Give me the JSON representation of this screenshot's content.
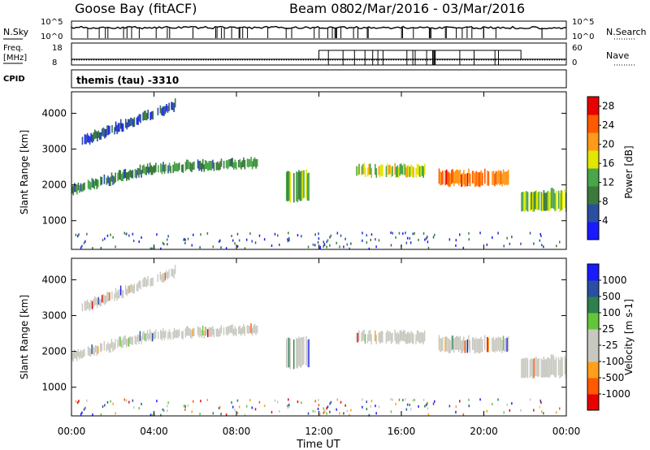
{
  "header": {
    "station": "Goose Bay (fitACF)",
    "beam": "Beam 08",
    "date_range": "02/Mar/2016 - 03/Mar/2016"
  },
  "status_panels": {
    "nsky_label": "N.Sky",
    "nsky_ticks": [
      "10^5",
      "10^0"
    ],
    "nsearch_label": "N.Search",
    "nsearch_ticks": [
      "10^5",
      "10^0"
    ],
    "freq_label_1": "Freq.",
    "freq_label_2": "[MHz]",
    "freq_ticks": [
      "18",
      "8"
    ],
    "nave_label": "Nave",
    "nave_ticks": [
      "60",
      "0"
    ],
    "cpid_label": "CPID",
    "cpid_text": "themis (tau) -3310"
  },
  "colors": {
    "power_scale": [
      "#1a1aff",
      "#2a4fa0",
      "#3c7a3c",
      "#4aa64a",
      "#e3e600",
      "#ff9a1a",
      "#ff5a00",
      "#e80000"
    ],
    "velocity_scale": [
      "#e80000",
      "#ff5a00",
      "#ff9f1a",
      "#c8c8c0",
      "#c8c8c0",
      "#63c63a",
      "#2f7f4f",
      "#2a4fa0",
      "#1a1aff"
    ],
    "ground_scatter": "#c8c8c0"
  },
  "chart_data": [
    {
      "type": "heatmap",
      "name": "power",
      "ylabel": "Slant Range [km]",
      "yticks": [
        "1000",
        "2000",
        "3000",
        "4000"
      ],
      "ylim": [
        200,
        4600
      ],
      "xlim": [
        0,
        24
      ],
      "colorbar": {
        "label": "Power [dB]",
        "ticks": [
          "4",
          "8",
          "12",
          "16",
          "20",
          "24",
          "28"
        ],
        "range": [
          0,
          30
        ]
      },
      "echo_bands": [
        {
          "x": [
            0.0,
            4.0
          ],
          "range_start": [
            1750,
            2350
          ],
          "range_end": [
            1950,
            2550
          ],
          "power": 10
        },
        {
          "x": [
            4.0,
            9.0
          ],
          "range_start": [
            2350,
            2500
          ],
          "range_end": [
            2550,
            2700
          ],
          "power": 11
        },
        {
          "x": [
            10.4,
            11.6
          ],
          "range_start": [
            1550,
            1600
          ],
          "range_end": [
            2350,
            2350
          ],
          "power": 12
        },
        {
          "x": [
            13.8,
            17.2
          ],
          "range_start": [
            2250,
            2250
          ],
          "range_end": [
            2500,
            2500
          ],
          "power": 17
        },
        {
          "x": [
            17.8,
            21.2
          ],
          "range_start": [
            2000,
            2000
          ],
          "range_end": [
            2350,
            2350
          ],
          "power": 23
        },
        {
          "x": [
            21.8,
            24.0
          ],
          "range_start": [
            1300,
            1300
          ],
          "range_end": [
            1800,
            1800
          ],
          "power": 14
        },
        {
          "x": [
            0.5,
            5.0
          ],
          "range_start": [
            3100,
            4100
          ],
          "range_end": [
            3300,
            4300
          ],
          "power": 6
        }
      ]
    },
    {
      "type": "heatmap",
      "name": "velocity",
      "xlabel": "Time UT",
      "xticks": [
        "00:00",
        "04:00",
        "08:00",
        "12:00",
        "16:00",
        "20:00",
        "00:00"
      ],
      "ylabel": "Slant Range [km]",
      "yticks": [
        "1000",
        "2000",
        "3000",
        "4000"
      ],
      "ylim": [
        200,
        4600
      ],
      "xlim": [
        0,
        24
      ],
      "colorbar": {
        "label": "Velocity [m s-1]",
        "ticks": [
          "1000",
          "500",
          "100",
          "25",
          "-25",
          "-100",
          "-500",
          "-1000"
        ]
      },
      "dominant_class": "ground scatter (grey)"
    }
  ]
}
